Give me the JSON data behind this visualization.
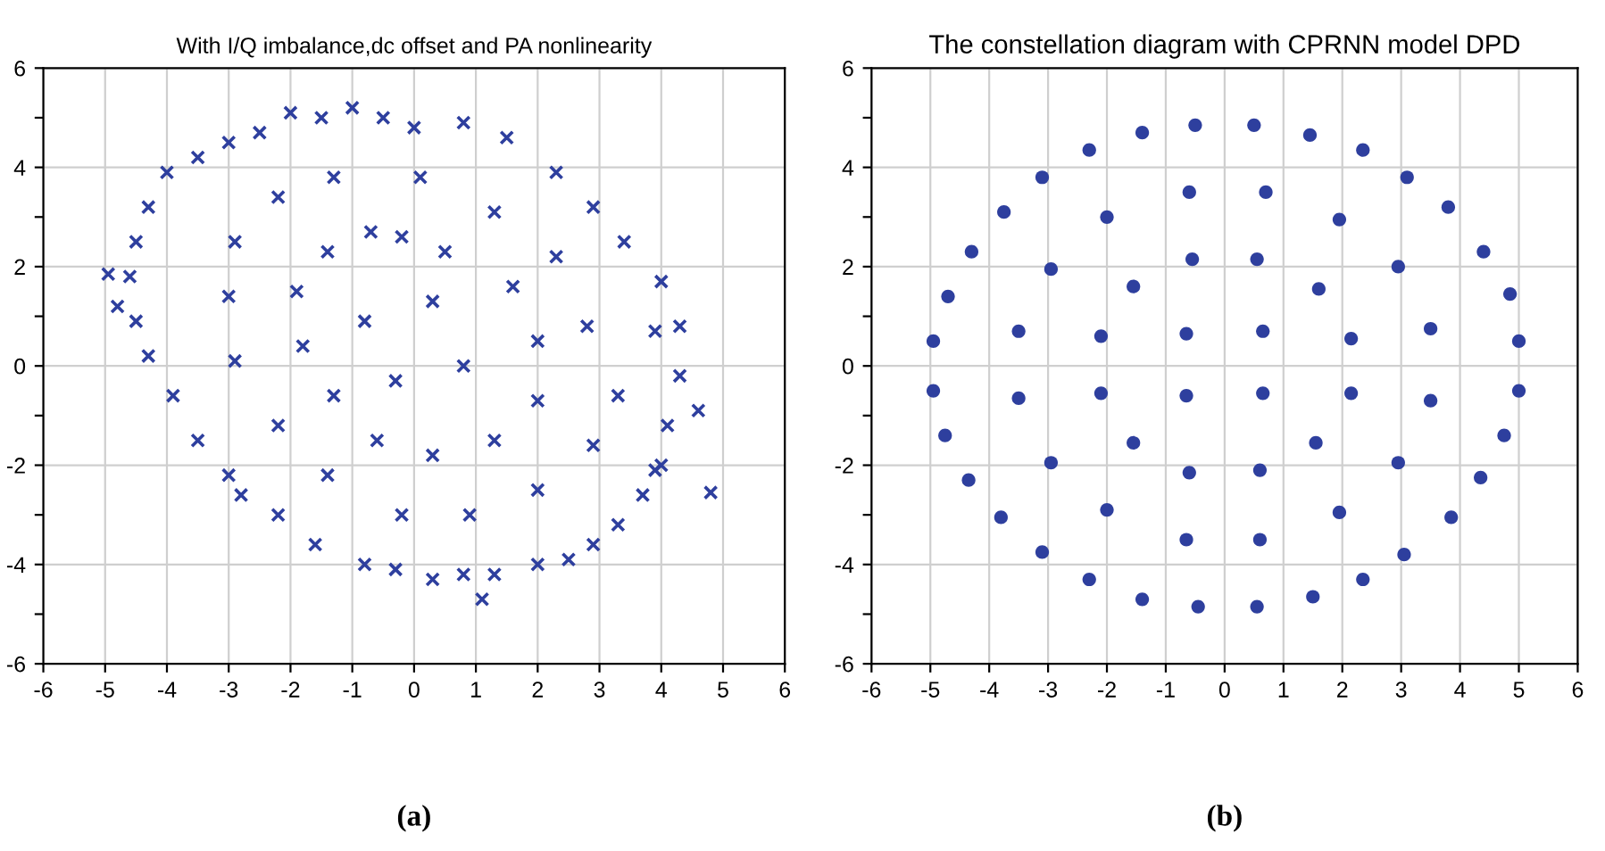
{
  "chart_data": [
    {
      "type": "scatter",
      "title": "With I/Q imbalance,dc offset and PA nonlinearity",
      "marker": "cross",
      "grid": true,
      "xlim": [
        -6,
        6
      ],
      "ylim": [
        -6,
        6
      ],
      "xticks": [
        -6,
        -5,
        -4,
        -3,
        -2,
        -1,
        0,
        1,
        2,
        3,
        4,
        5,
        6
      ],
      "yticks": [
        -6,
        {
          "value": -5,
          "label": null
        },
        -4,
        {
          "value": -3,
          "label": null
        },
        -2,
        {
          "value": -1,
          "label": null
        },
        0,
        {
          "value": 1,
          "label": null
        },
        2,
        {
          "value": 3,
          "label": null
        },
        4,
        {
          "value": 5,
          "label": null
        },
        6
      ],
      "annotations": [
        "(a)"
      ],
      "series": [
        {
          "color": "#2e3f9e",
          "x": [
            -1,
            -1.5,
            -2,
            -2.5,
            -3,
            -3.5,
            -4,
            -4.3,
            -4.5,
            -4.6,
            -4.8,
            -4.5,
            -4.3,
            -3.9,
            -3.5,
            -3,
            -2.8,
            -2.2,
            -1.6,
            -0.8,
            -0.3,
            0.3,
            0.8,
            1.3,
            2,
            2.5,
            2.9,
            3.3,
            3.7,
            4,
            4.1,
            4.3,
            4.3,
            4,
            3.4,
            2.9,
            2.3,
            1.5,
            0.8,
            0,
            -0.5,
            -2.9,
            -2.2,
            -1.3,
            0.1,
            1.3,
            -0.7,
            -0.2,
            0.5,
            -1.4,
            2.3,
            1.6,
            0.3,
            -0.8,
            -1.9,
            -3,
            -1.8,
            -2.9,
            -1.3,
            -0.3,
            0.8,
            2,
            2.8,
            3.9,
            2,
            3.3,
            1.3,
            0.3,
            -0.6,
            -2.2,
            -1.4,
            -0.2,
            0.9,
            2,
            2.9,
            3.9,
            4.6,
            4.8,
            -4.95,
            1.1
          ],
          "values": [
            5.2,
            5.0,
            5.1,
            4.7,
            4.5,
            4.2,
            3.9,
            3.2,
            2.5,
            1.8,
            1.2,
            0.9,
            0.2,
            -0.6,
            -1.5,
            -2.2,
            -2.6,
            -3,
            -3.6,
            -4,
            -4.1,
            -4.3,
            -4.2,
            -4.2,
            -4,
            -3.9,
            -3.6,
            -3.2,
            -2.6,
            -2,
            -1.2,
            -0.2,
            0.8,
            1.7,
            2.5,
            3.2,
            3.9,
            4.6,
            4.9,
            4.8,
            5.0,
            2.5,
            3.4,
            3.8,
            3.8,
            3.1,
            2.7,
            2.6,
            2.3,
            2.3,
            2.2,
            1.6,
            1.3,
            0.9,
            1.5,
            1.4,
            0.4,
            0.1,
            -0.6,
            -0.3,
            0,
            0.5,
            0.8,
            0.7,
            -0.7,
            -0.6,
            -1.5,
            -1.8,
            -1.5,
            -1.2,
            -2.2,
            -3,
            -3,
            -2.5,
            -1.6,
            -2.1,
            -0.9,
            -2.55,
            1.85,
            -4.7
          ]
        }
      ]
    },
    {
      "type": "scatter",
      "title": "The constellation diagram with CPRNN model DPD",
      "marker": "circle",
      "grid": true,
      "xlim": [
        -6,
        6
      ],
      "ylim": [
        -6,
        6
      ],
      "xticks": [
        -6,
        -5,
        -4,
        -3,
        -2,
        -1,
        0,
        1,
        2,
        3,
        4,
        5,
        6
      ],
      "yticks": [
        -6,
        {
          "value": -5,
          "label": null
        },
        -4,
        {
          "value": -3,
          "label": null
        },
        -2,
        {
          "value": -1,
          "label": null
        },
        0,
        {
          "value": 1,
          "label": null
        },
        2,
        {
          "value": 3,
          "label": null
        },
        4,
        {
          "value": 5,
          "label": null
        },
        6
      ],
      "annotations": [
        "(b)"
      ],
      "series": [
        {
          "color": "#2e3f9e",
          "x": [
            -0.5,
            0.5,
            1.45,
            2.35,
            3.1,
            3.8,
            4.4,
            4.85,
            5.0,
            5.0,
            4.75,
            4.35,
            3.85,
            3.05,
            2.35,
            1.5,
            0.55,
            -0.45,
            -1.4,
            -2.3,
            -3.1,
            -3.8,
            -4.35,
            -4.75,
            -4.95,
            -4.95,
            -4.7,
            -4.3,
            -3.75,
            -3.1,
            -2.3,
            -1.4,
            -0.6,
            0.7,
            1.95,
            2.95,
            3.5,
            3.5,
            2.95,
            1.95,
            0.6,
            -0.65,
            -2.0,
            -2.95,
            -3.5,
            -3.5,
            -2.95,
            -2.0,
            -0.55,
            0.55,
            1.6,
            2.15,
            2.15,
            1.55,
            0.6,
            -0.6,
            -1.55,
            -2.1,
            -2.1,
            -1.55,
            -0.65,
            0.65,
            0.65,
            -0.65
          ],
          "values": [
            4.85,
            4.85,
            4.65,
            4.35,
            3.8,
            3.2,
            2.3,
            1.45,
            0.5,
            -0.5,
            -1.4,
            -2.25,
            -3.05,
            -3.8,
            -4.3,
            -4.65,
            -4.85,
            -4.85,
            -4.7,
            -4.3,
            -3.75,
            -3.05,
            -2.3,
            -1.4,
            -0.5,
            0.5,
            1.4,
            2.3,
            3.1,
            3.8,
            4.35,
            4.7,
            3.5,
            3.5,
            2.95,
            2.0,
            0.75,
            -0.7,
            -1.95,
            -2.95,
            -3.5,
            -3.5,
            -2.9,
            -1.95,
            -0.65,
            0.7,
            1.95,
            3.0,
            2.15,
            2.15,
            1.55,
            0.55,
            -0.55,
            -1.55,
            -2.1,
            -2.15,
            -1.55,
            -0.55,
            0.6,
            1.6,
            0.65,
            0.7,
            -0.55,
            -0.6
          ]
        }
      ]
    }
  ]
}
